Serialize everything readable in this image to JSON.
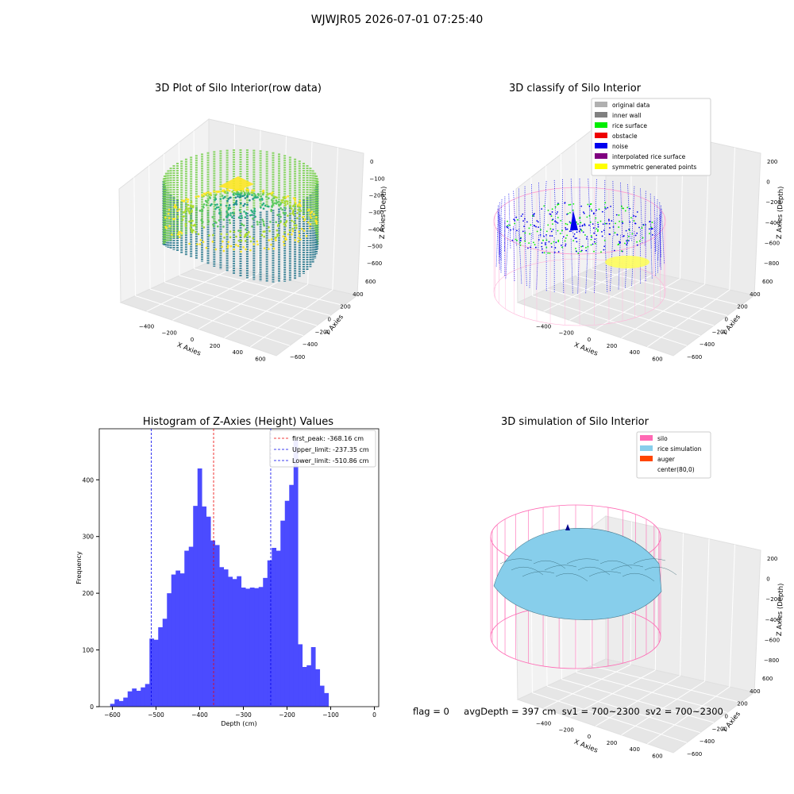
{
  "figure": {
    "title": "WJWJR05 2026-07-01 07:25:40",
    "footer": {
      "flag": "flag = 0",
      "avg": "avgDepth = 397 cm",
      "sv1": "sv1 = 700~2300",
      "sv2": "sv2 = 700~2300"
    }
  },
  "chart_data": [
    {
      "type": "scatter",
      "title": "3D Plot of Silo Interior(row data)",
      "xlabel": "X Axies",
      "ylabel": "Y Axies",
      "zlabel": "Z Axies (Depth)",
      "x_ticks": [
        "−400",
        "−200",
        "0",
        "200",
        "400",
        "600"
      ],
      "y_ticks": [
        "−600",
        "−400",
        "−200",
        "0",
        "200",
        "400",
        "600"
      ],
      "z_ticks": [
        "0",
        "−100",
        "−200",
        "−300",
        "−400",
        "−500",
        "−600"
      ],
      "colormap": "viridis"
    },
    {
      "type": "scatter",
      "title": "3D classify of Silo Interior",
      "xlabel": "X Axies",
      "ylabel": "Y Axies",
      "zlabel": "Z Axies (Depth)",
      "x_ticks": [
        "−400",
        "−200",
        "0",
        "200",
        "400",
        "600"
      ],
      "y_ticks": [
        "−600",
        "−400",
        "−200",
        "0",
        "200",
        "400",
        "600"
      ],
      "z_ticks": [
        "200",
        "0",
        "−200",
        "−400",
        "−600",
        "−800"
      ],
      "legend_position": "top-right",
      "legend": [
        {
          "label": "original data",
          "color": "#b0b0b0"
        },
        {
          "label": "inner wall",
          "color": "#808080"
        },
        {
          "label": "rice surface",
          "color": "#00ee00"
        },
        {
          "label": "obstacle",
          "color": "#ee0000"
        },
        {
          "label": "noise",
          "color": "#0000ee"
        },
        {
          "label": "interpolated rice surface",
          "color": "#800080"
        },
        {
          "label": "symmetric generated points",
          "color": "#ffff00"
        }
      ]
    },
    {
      "type": "bar",
      "title": "Histogram of Z-Axies (Height) Values",
      "xlabel": "Depth (cm)",
      "ylabel": "Frequency",
      "bar_color": "#4b4bff",
      "bin_width": 10,
      "bin_starts": [
        -605,
        -595,
        -585,
        -575,
        -565,
        -555,
        -545,
        -535,
        -525,
        -515,
        -505,
        -495,
        -485,
        -475,
        -465,
        -455,
        -445,
        -435,
        -425,
        -415,
        -405,
        -395,
        -385,
        -375,
        -365,
        -355,
        -345,
        -335,
        -325,
        -315,
        -305,
        -295,
        -285,
        -275,
        -265,
        -255,
        -245,
        -235,
        -225,
        -215,
        -205,
        -195,
        -185,
        -175,
        -165,
        -155,
        -145,
        -135,
        -125,
        -115,
        -105,
        -95,
        -85,
        -75,
        -65,
        -55,
        -45,
        -35,
        -25,
        -15
      ],
      "values": [
        5,
        13,
        10,
        16,
        27,
        32,
        28,
        34,
        40,
        120,
        118,
        140,
        155,
        200,
        233,
        240,
        235,
        275,
        282,
        354,
        420,
        353,
        335,
        293,
        285,
        246,
        242,
        229,
        225,
        230,
        210,
        208,
        210,
        209,
        211,
        227,
        258,
        280,
        275,
        328,
        363,
        391,
        470,
        110,
        70,
        73,
        105,
        66,
        37,
        24,
        0,
        0,
        0,
        0,
        0,
        0,
        0,
        0,
        0,
        0
      ],
      "xlim": [
        -630,
        10
      ],
      "ylim": [
        0,
        490
      ],
      "x_ticks": [
        -600,
        -500,
        -400,
        -300,
        -200,
        -100,
        0
      ],
      "y_ticks": [
        0,
        100,
        200,
        300,
        400
      ],
      "vlines": [
        {
          "label": "first_peak: -368.16 cm",
          "x": -368.16,
          "color": "#ee0000"
        },
        {
          "label": "Upper_limit: -237.35 cm",
          "x": -237.35,
          "color": "#0000ee"
        },
        {
          "label": "Lower_limit: -510.86 cm",
          "x": -510.86,
          "color": "#0000ee"
        }
      ],
      "legend_position": "top-right",
      "grid": false
    },
    {
      "type": "area",
      "title": "3D simulation of Silo Interior",
      "xlabel": "X Axies",
      "ylabel": "Y Axies",
      "zlabel": "Z Axies (Depth)",
      "x_ticks": [
        "−400",
        "−200",
        "0",
        "200",
        "400",
        "600"
      ],
      "y_ticks": [
        "−600",
        "−400",
        "−200",
        "0",
        "200",
        "400",
        "600"
      ],
      "z_ticks": [
        "200",
        "0",
        "−200",
        "−400",
        "−600",
        "−800"
      ],
      "legend_position": "top-right",
      "legend": [
        {
          "label": "silo",
          "color": "#ff69b4"
        },
        {
          "label": "rice simulation",
          "color": "#87ceeb"
        },
        {
          "label": "auger",
          "color": "#ff4500"
        },
        {
          "label": "center(80,0)",
          "color": ""
        }
      ]
    }
  ]
}
